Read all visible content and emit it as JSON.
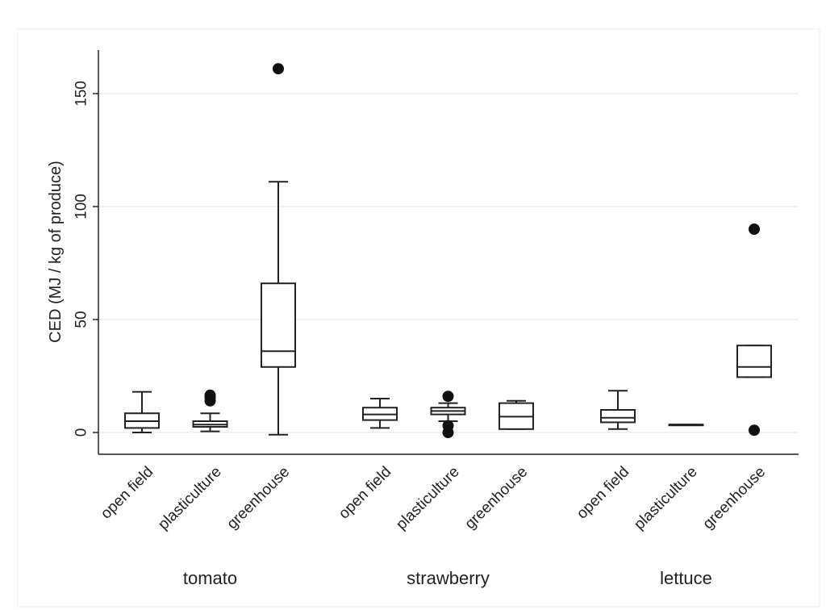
{
  "chart_data": {
    "type": "box",
    "ylabel": "CED (MJ / kg of produce)",
    "ylim": [
      -10,
      168
    ],
    "yticks": [
      0,
      50,
      100,
      150
    ],
    "grid": true,
    "groups": [
      {
        "name": "tomato",
        "boxes": [
          {
            "category": "open field",
            "min": 0,
            "q1": 2,
            "median": 5,
            "q3": 8.5,
            "max": 18,
            "outliers": []
          },
          {
            "category": "plasticulture",
            "min": 0.5,
            "q1": 2.5,
            "median": 3.5,
            "q3": 5,
            "max": 8.5,
            "outliers": [
              14,
              15.5,
              16.5
            ]
          },
          {
            "category": "greenhouse",
            "min": -1,
            "q1": 29,
            "median": 36,
            "q3": 66,
            "max": 111,
            "outliers": [
              161
            ]
          }
        ]
      },
      {
        "name": "strawberry",
        "boxes": [
          {
            "category": "open field",
            "min": 2,
            "q1": 5.5,
            "median": 8,
            "q3": 11,
            "max": 15,
            "outliers": []
          },
          {
            "category": "plasticulture",
            "min": 5,
            "q1": 8,
            "median": 9.5,
            "q3": 11,
            "max": 13,
            "outliers": [
              0,
              3,
              16
            ]
          },
          {
            "category": "greenhouse",
            "min": 1.5,
            "q1": 1.5,
            "median": 7,
            "q3": 13,
            "max": 14,
            "outliers": []
          }
        ]
      },
      {
        "name": "lettuce",
        "boxes": [
          {
            "category": "open field",
            "min": 1.5,
            "q1": 4.5,
            "median": 6.5,
            "q3": 10,
            "max": 18.5,
            "outliers": []
          },
          {
            "category": "plasticulture",
            "min": 3.5,
            "q1": 3.5,
            "median": 3.5,
            "q3": 3.5,
            "max": 3.5,
            "outliers": []
          },
          {
            "category": "greenhouse",
            "min": 24.5,
            "q1": 24.5,
            "median": 29,
            "q3": 38.5,
            "max": 38.5,
            "outliers": [
              1,
              90
            ]
          }
        ]
      }
    ]
  }
}
